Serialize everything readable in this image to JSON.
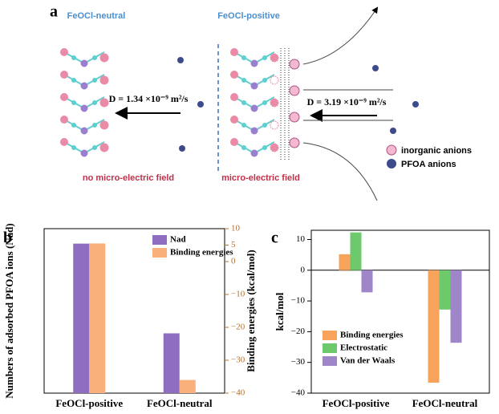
{
  "diagram": {
    "panel_label": "a",
    "left_title": "FeOCl-neutral",
    "right_title": "FeOCl-positive",
    "left_diffusion": "D = 1.34 ×10⁻⁹ m²/s",
    "right_diffusion": "D = 3.19 ×10⁻⁹ m²/s",
    "left_caption": "no micro-electric field",
    "right_caption": "micro-electric field",
    "legend": [
      "inorganic anions",
      "PFOA anions"
    ]
  },
  "chart_data": [
    {
      "type": "bar",
      "panel_label": "b",
      "categories": [
        "FeOCl-positive",
        "FeOCl-neutral"
      ],
      "ylabel": "Numbers of adsorbed PFOA ions (Nad)",
      "y2label": "Binding energies (kcal/mol)",
      "ylim": [
        0,
        5.5
      ],
      "y2lim": [
        -40,
        10
      ],
      "y2ticks": [
        {
          "value": -40,
          "label": "−40"
        },
        {
          "value": -30,
          "label": "−30"
        },
        {
          "value": -20,
          "label": "−20"
        },
        {
          "value": -10,
          "label": "−10"
        },
        0,
        5,
        10
      ],
      "series": [
        {
          "name": "Nad",
          "color": "#8f6dc0",
          "values": [
            5,
            2
          ]
        },
        {
          "name": "Binding energies",
          "color": "#f9b07a",
          "axis": "y2",
          "values": [
            5.5,
            -36
          ]
        }
      ],
      "legend": "upper right"
    },
    {
      "type": "bar",
      "panel_label": "c",
      "categories": [
        "FeOCl-positive",
        "FeOCl-neutral"
      ],
      "ylabel": "kcal/mol",
      "ylim": [
        -40,
        13
      ],
      "yticks": [
        {
          "value": -40,
          "label": "−40"
        },
        {
          "value": -30,
          "label": "−30"
        },
        {
          "value": -20,
          "label": "−20"
        },
        {
          "value": -10,
          "label": "−10"
        },
        0,
        10
      ],
      "series": [
        {
          "name": "Binding energies",
          "color": "#f7a35c",
          "values": [
            5.2,
            -36.6
          ]
        },
        {
          "name": "Electrostatic",
          "color": "#6cc96c",
          "values": [
            12.3,
            -12.8
          ]
        },
        {
          "name": "Van der Waals",
          "color": "#9f86c9",
          "values": [
            -7.2,
            -23.6
          ]
        }
      ],
      "legend": "lower left"
    }
  ]
}
